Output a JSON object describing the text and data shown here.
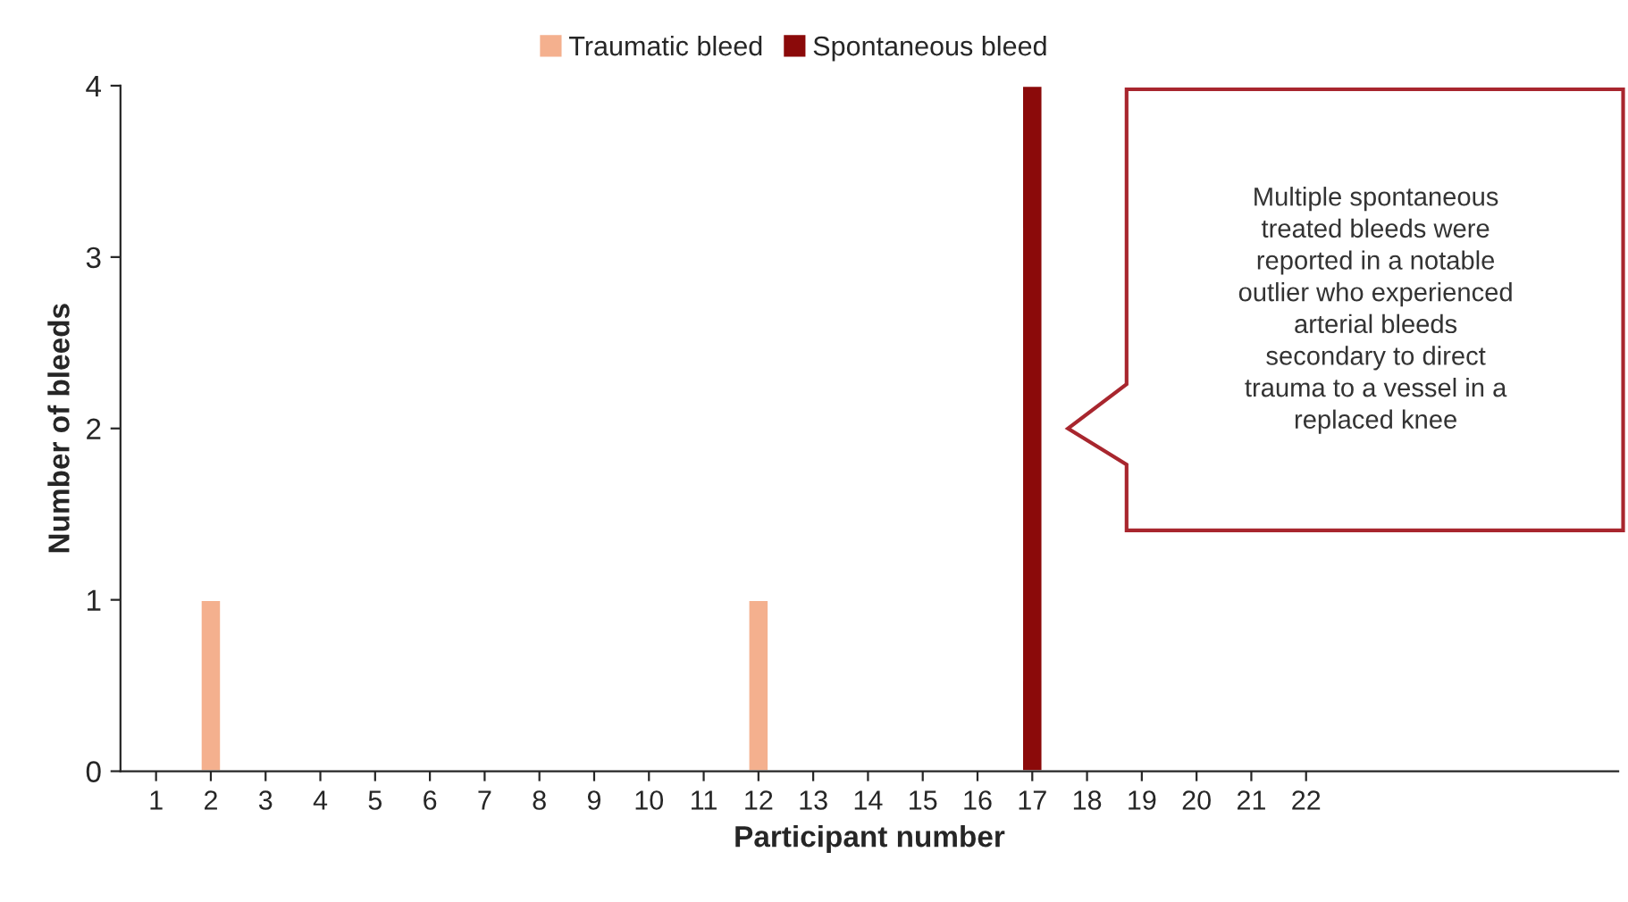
{
  "chart_data": {
    "type": "bar",
    "xlabel": "Participant number",
    "ylabel": "Number of bleeds",
    "categories": [
      "1",
      "2",
      "3",
      "4",
      "5",
      "6",
      "7",
      "8",
      "9",
      "10",
      "11",
      "12",
      "13",
      "14",
      "15",
      "16",
      "17",
      "18",
      "19",
      "20",
      "21",
      "22"
    ],
    "series": [
      {
        "name": "Traumatic bleed",
        "color": "#f4b08e",
        "values": [
          null,
          1,
          null,
          null,
          null,
          null,
          null,
          null,
          null,
          null,
          null,
          1,
          null,
          null,
          null,
          null,
          null,
          null,
          null,
          null,
          null,
          null
        ]
      },
      {
        "name": "Spontaneous bleed",
        "color": "#8b0a0a",
        "values": [
          null,
          null,
          null,
          null,
          null,
          null,
          null,
          null,
          null,
          null,
          null,
          null,
          null,
          null,
          null,
          null,
          4,
          null,
          null,
          null,
          null,
          null
        ]
      }
    ],
    "ylim": [
      0,
      4
    ],
    "yticks": [
      0,
      1,
      2,
      3,
      4
    ],
    "grid": false,
    "legend": "top",
    "annotations": [
      "Multiple spontaneous\ntreated bleeds were\nreported in a notable\noutlier who experienced\narterial bleeds\nsecondary to direct\ntrauma to a vessel in a\nreplaced knee"
    ]
  }
}
